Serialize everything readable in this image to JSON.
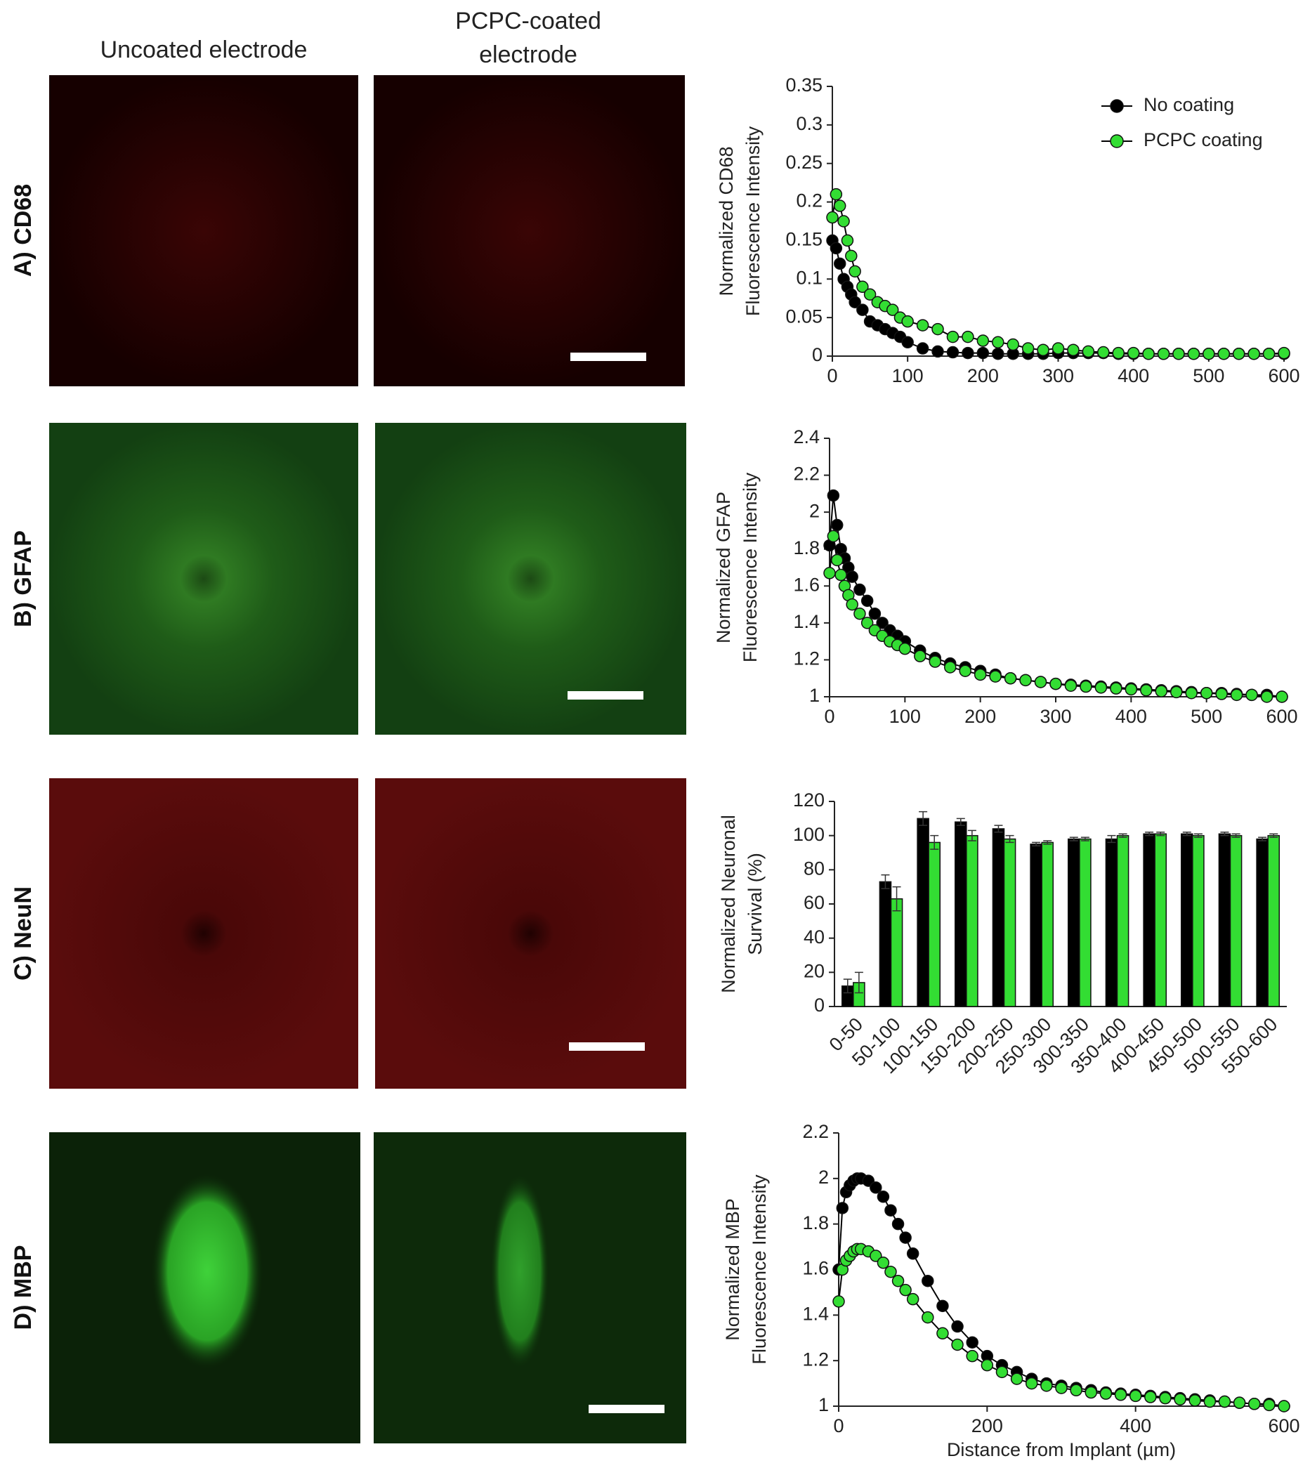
{
  "header_left": "Uncoated electrode",
  "header_right": [
    "PCPC-coated",
    "electrode"
  ],
  "row_labels": [
    "A) CD68",
    "B) GFAP",
    "C) NeuN",
    "D) MBP"
  ],
  "chart_data": [
    {
      "type": "line",
      "ylabel": [
        "Normalized CD68",
        "Fluorescence Intensity"
      ],
      "legend": "upper right",
      "x": [
        0,
        5,
        10,
        15,
        20,
        25,
        30,
        40,
        50,
        60,
        70,
        80,
        90,
        100,
        120,
        140,
        160,
        180,
        200,
        220,
        240,
        260,
        280,
        300,
        320,
        340,
        360,
        380,
        400,
        420,
        440,
        460,
        480,
        500,
        520,
        540,
        560,
        580,
        600
      ],
      "xlim": [
        0,
        600
      ],
      "xticks": [
        0,
        100,
        200,
        300,
        400,
        500,
        600
      ],
      "ylim": [
        0,
        0.35
      ],
      "yticks": [
        0,
        0.05,
        0.1,
        0.15,
        0.2,
        0.25,
        0.3,
        0.35
      ],
      "series": [
        {
          "name": "No coating",
          "color": "#000000",
          "values": [
            0.15,
            0.14,
            0.12,
            0.1,
            0.09,
            0.08,
            0.07,
            0.06,
            0.045,
            0.04,
            0.035,
            0.03,
            0.025,
            0.018,
            0.01,
            0.006,
            0.005,
            0.004,
            0.004,
            0.003,
            0.003,
            0.003,
            0.003,
            0.004,
            0.004,
            0.004,
            0.004,
            0.003,
            0.003,
            0.003,
            0.003,
            0.003,
            0.003,
            0.003,
            0.003,
            0.003,
            0.003,
            0.003,
            0.003
          ]
        },
        {
          "name": "PCPC coating",
          "color": "#33dd33",
          "values": [
            0.18,
            0.21,
            0.195,
            0.175,
            0.15,
            0.13,
            0.11,
            0.09,
            0.08,
            0.07,
            0.065,
            0.06,
            0.05,
            0.045,
            0.04,
            0.035,
            0.025,
            0.025,
            0.02,
            0.018,
            0.015,
            0.01,
            0.008,
            0.01,
            0.008,
            0.006,
            0.005,
            0.004,
            0.004,
            0.003,
            0.003,
            0.003,
            0.003,
            0.003,
            0.003,
            0.003,
            0.003,
            0.003,
            0.004
          ]
        }
      ]
    },
    {
      "type": "line",
      "ylabel": [
        "Normalized GFAP",
        "Fluorescence Intensity"
      ],
      "x": [
        0,
        5,
        10,
        15,
        20,
        25,
        30,
        40,
        50,
        60,
        70,
        80,
        90,
        100,
        120,
        140,
        160,
        180,
        200,
        220,
        240,
        260,
        280,
        300,
        320,
        340,
        360,
        380,
        400,
        420,
        440,
        460,
        480,
        500,
        520,
        540,
        560,
        580,
        600
      ],
      "xlim": [
        0,
        600
      ],
      "xticks": [
        0,
        100,
        200,
        300,
        400,
        500,
        600
      ],
      "ylim": [
        1,
        2.4
      ],
      "yticks": [
        1,
        1.2,
        1.4,
        1.6,
        1.8,
        2,
        2.2,
        2.4
      ],
      "series": [
        {
          "color": "#000000",
          "values": [
            1.82,
            2.09,
            1.93,
            1.8,
            1.75,
            1.7,
            1.65,
            1.58,
            1.52,
            1.45,
            1.4,
            1.36,
            1.33,
            1.3,
            1.25,
            1.21,
            1.18,
            1.16,
            1.14,
            1.12,
            1.1,
            1.09,
            1.08,
            1.07,
            1.065,
            1.06,
            1.055,
            1.05,
            1.045,
            1.04,
            1.035,
            1.03,
            1.025,
            1.02,
            1.02,
            1.015,
            1.01,
            1.01,
            1.0
          ]
        },
        {
          "color": "#33dd33",
          "values": [
            1.67,
            1.87,
            1.74,
            1.66,
            1.6,
            1.55,
            1.5,
            1.45,
            1.4,
            1.36,
            1.33,
            1.3,
            1.28,
            1.26,
            1.22,
            1.19,
            1.16,
            1.14,
            1.12,
            1.11,
            1.1,
            1.09,
            1.08,
            1.07,
            1.06,
            1.055,
            1.05,
            1.045,
            1.04,
            1.035,
            1.03,
            1.025,
            1.02,
            1.02,
            1.015,
            1.01,
            1.01,
            1.0,
            1.0
          ]
        }
      ]
    },
    {
      "type": "bar",
      "ylabel": [
        "Normalized Neuronal",
        "Survival (%)"
      ],
      "categories": [
        "0-50",
        "50-100",
        "100-150",
        "150-200",
        "200-250",
        "250-300",
        "300-350",
        "350-400",
        "400-450",
        "450-500",
        "500-550",
        "550-600"
      ],
      "ylim": [
        0,
        120
      ],
      "yticks": [
        0,
        20,
        40,
        60,
        80,
        100,
        120
      ],
      "series": [
        {
          "color": "#000000",
          "values": [
            12,
            73,
            110,
            108,
            104,
            95,
            98,
            98,
            101,
            101,
            101,
            98
          ],
          "errors": [
            4,
            4,
            4,
            2,
            2,
            1,
            1,
            2,
            1,
            1,
            1,
            1
          ]
        },
        {
          "color": "#33dd33",
          "values": [
            14,
            63,
            96,
            100,
            98,
            96,
            98,
            100,
            101,
            100,
            100,
            100
          ],
          "errors": [
            6,
            7,
            4,
            3,
            2,
            1,
            1,
            1,
            1,
            1,
            1,
            1
          ]
        }
      ]
    },
    {
      "type": "line",
      "ylabel": [
        "Normalized MBP",
        "Fluorescence Intensity"
      ],
      "xlabel": "Distance from Implant (µm)",
      "x": [
        0,
        5,
        10,
        15,
        20,
        25,
        30,
        40,
        50,
        60,
        70,
        80,
        90,
        100,
        120,
        140,
        160,
        180,
        200,
        220,
        240,
        260,
        280,
        300,
        320,
        340,
        360,
        380,
        400,
        420,
        440,
        460,
        480,
        500,
        520,
        540,
        560,
        580,
        600
      ],
      "xlim": [
        0,
        600
      ],
      "xticks": [
        0,
        200,
        400,
        600
      ],
      "ylim": [
        1,
        2.2
      ],
      "yticks": [
        1,
        1.2,
        1.4,
        1.6,
        1.8,
        2,
        2.2
      ],
      "series": [
        {
          "color": "#000000",
          "values": [
            1.6,
            1.87,
            1.94,
            1.97,
            1.99,
            2.0,
            2.0,
            1.99,
            1.96,
            1.92,
            1.86,
            1.8,
            1.74,
            1.67,
            1.55,
            1.44,
            1.35,
            1.28,
            1.22,
            1.18,
            1.15,
            1.12,
            1.1,
            1.09,
            1.08,
            1.07,
            1.06,
            1.055,
            1.05,
            1.045,
            1.04,
            1.035,
            1.03,
            1.025,
            1.02,
            1.015,
            1.01,
            1.01,
            1.0
          ]
        },
        {
          "color": "#33dd33",
          "values": [
            1.46,
            1.6,
            1.64,
            1.66,
            1.68,
            1.69,
            1.69,
            1.68,
            1.66,
            1.63,
            1.59,
            1.55,
            1.51,
            1.47,
            1.39,
            1.32,
            1.27,
            1.22,
            1.18,
            1.15,
            1.12,
            1.1,
            1.09,
            1.08,
            1.07,
            1.06,
            1.055,
            1.05,
            1.045,
            1.04,
            1.035,
            1.03,
            1.025,
            1.02,
            1.02,
            1.015,
            1.01,
            1.005,
            1.0
          ]
        }
      ]
    }
  ]
}
